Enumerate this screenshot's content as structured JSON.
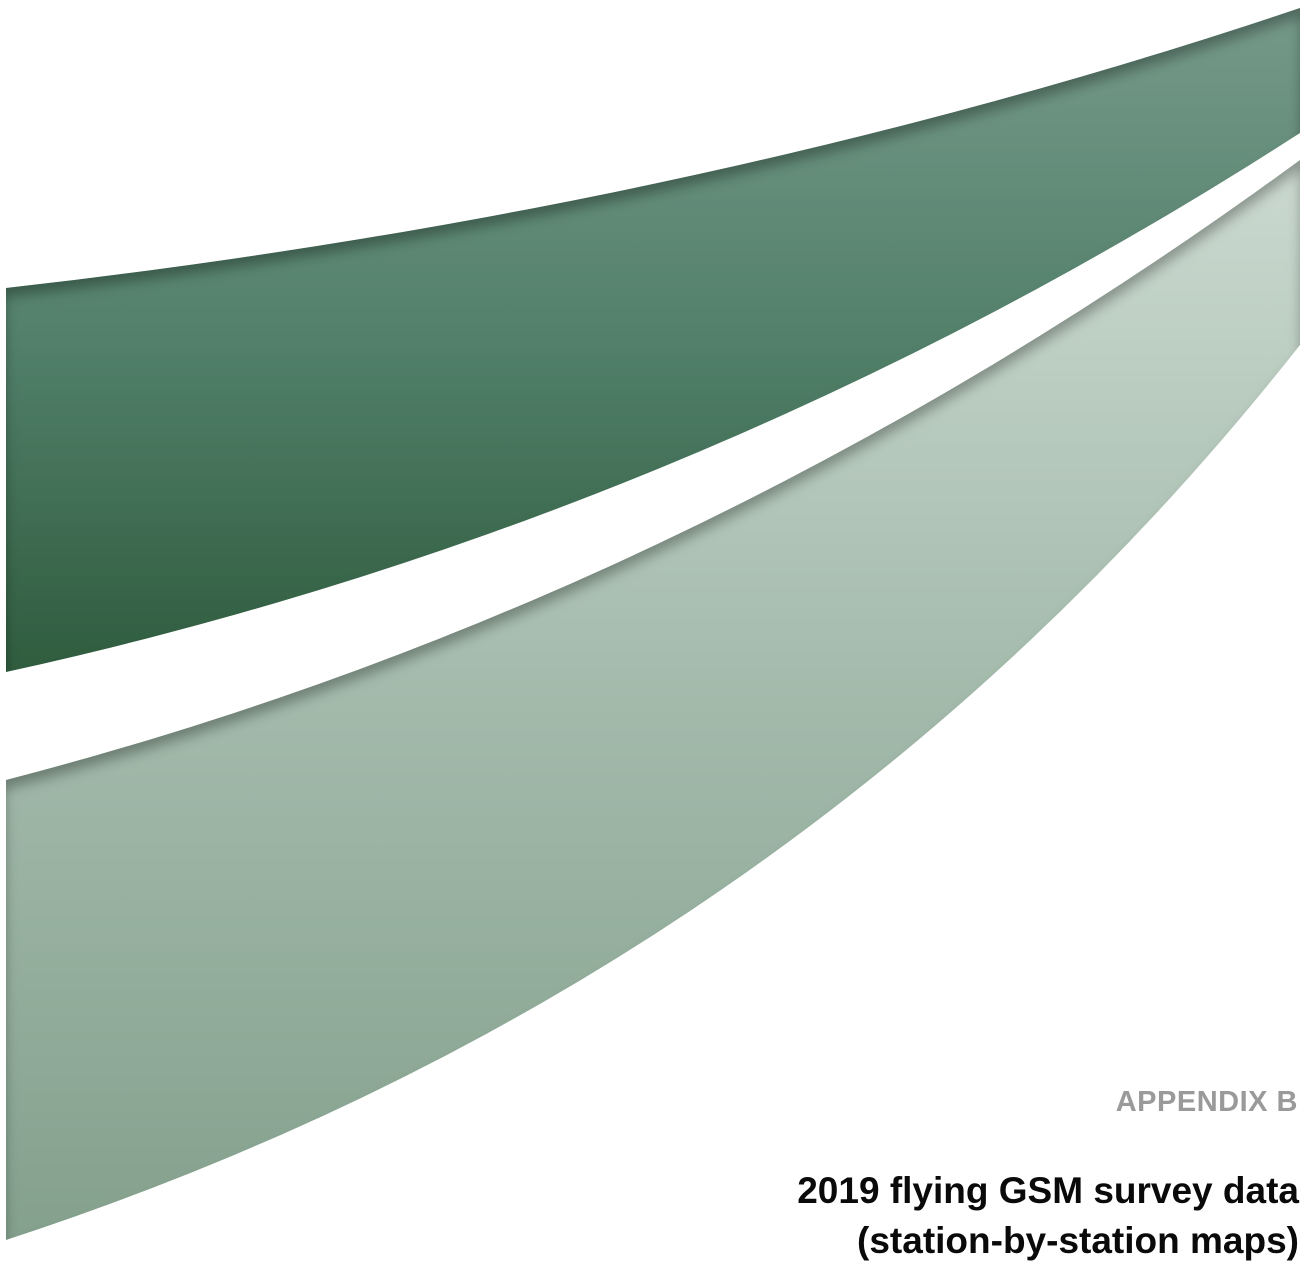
{
  "cover": {
    "appendix_label": "APPENDIX B",
    "title_line_1": "2019 flying GSM survey data",
    "title_line_2": "(station-by-station maps)"
  },
  "colors": {
    "dark_band_top": "#6f9580",
    "dark_band_bottom": "#2f5c3e",
    "light_band_top": "#c7d6ce",
    "light_band_bottom": "#86a38f",
    "appendix_label": "#9a9a9a",
    "title": "#0a0a0a"
  }
}
